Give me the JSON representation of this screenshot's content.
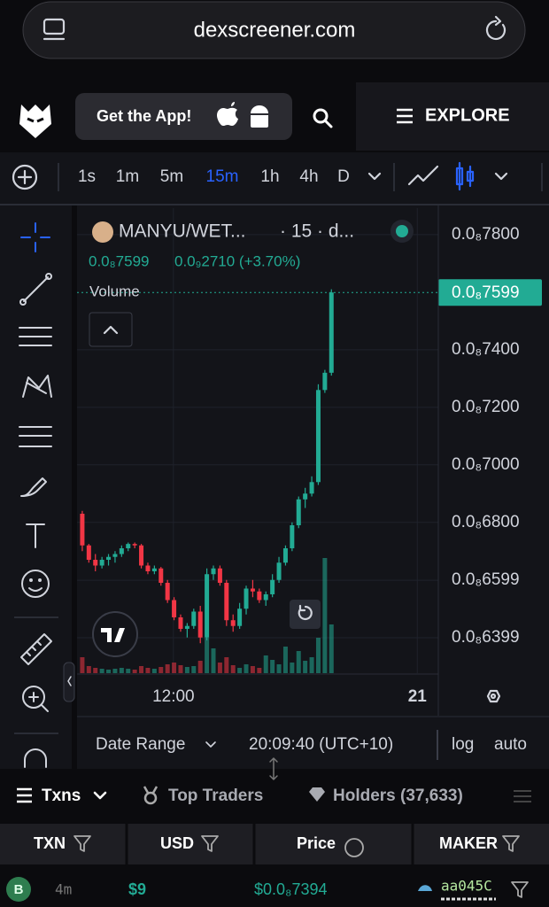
{
  "browser": {
    "url": "dexscreener.com"
  },
  "nav": {
    "app_button": "Get the App!",
    "explore": "EXPLORE"
  },
  "timeframes": [
    "1s",
    "1m",
    "5m",
    "15m",
    "1h",
    "4h",
    "D"
  ],
  "selected_timeframe": 3,
  "chart_data": {
    "type": "candlestick",
    "pair": "MANYU/WET...",
    "interval": "· 15 · d...",
    "last_price": "0.0₈7599",
    "change": "0.0₉2710 (+3.70%)",
    "volume_label": "Volume",
    "up_color": "#22ab94",
    "down_color": "#f23645",
    "open": [
      6.83e-09,
      6.72e-09,
      6.67e-09,
      6.65e-09,
      6.67e-09,
      6.68e-09,
      6.69e-09,
      6.71e-09,
      6.725e-09,
      6.72e-09,
      6.65e-09,
      6.63e-09,
      6.64e-09,
      6.59e-09,
      6.53e-09,
      6.47e-09,
      6.43e-09,
      6.44e-09,
      6.49e-09,
      6.4e-09,
      6.62e-09,
      6.64e-09,
      6.59e-09,
      6.46e-09,
      6.44e-09,
      6.5e-09,
      6.57e-09,
      6.56e-09,
      6.53e-09,
      6.55e-09,
      6.6e-09,
      6.66e-09,
      6.71e-09,
      6.79e-09,
      6.88e-09,
      6.9e-09,
      6.94e-09,
      7.26e-09,
      7.32e-09
    ],
    "high": [
      6.84e-09,
      6.725e-09,
      6.69e-09,
      6.68e-09,
      6.69e-09,
      6.7e-09,
      6.72e-09,
      6.73e-09,
      6.73e-09,
      6.725e-09,
      6.66e-09,
      6.65e-09,
      6.645e-09,
      6.6e-09,
      6.54e-09,
      6.48e-09,
      6.45e-09,
      6.5e-09,
      6.51e-09,
      6.64e-09,
      6.65e-09,
      6.65e-09,
      6.6e-09,
      6.48e-09,
      6.52e-09,
      6.58e-09,
      6.6e-09,
      6.57e-09,
      6.56e-09,
      6.62e-09,
      6.68e-09,
      6.72e-09,
      6.8e-09,
      6.89e-09,
      6.92e-09,
      6.96e-09,
      7.28e-09,
      7.33e-09,
      7.61e-09
    ],
    "low": [
      6.7e-09,
      6.66e-09,
      6.63e-09,
      6.64e-09,
      6.65e-09,
      6.66e-09,
      6.68e-09,
      6.7e-09,
      6.71e-09,
      6.64e-09,
      6.62e-09,
      6.62e-09,
      6.58e-09,
      6.52e-09,
      6.46e-09,
      6.42e-09,
      6.4e-09,
      6.43e-09,
      6.38e-09,
      6.39e-09,
      6.6e-09,
      6.58e-09,
      6.44e-09,
      6.42e-09,
      6.43e-09,
      6.48e-09,
      6.54e-09,
      6.52e-09,
      6.51e-09,
      6.54e-09,
      6.59e-09,
      6.65e-09,
      6.7e-09,
      6.78e-09,
      6.85e-09,
      6.89e-09,
      6.93e-09,
      7.25e-09,
      7.31e-09
    ],
    "close": [
      6.72e-09,
      6.67e-09,
      6.65e-09,
      6.67e-09,
      6.68e-09,
      6.69e-09,
      6.71e-09,
      6.725e-09,
      6.72e-09,
      6.65e-09,
      6.63e-09,
      6.64e-09,
      6.59e-09,
      6.53e-09,
      6.47e-09,
      6.43e-09,
      6.44e-09,
      6.49e-09,
      6.4e-09,
      6.62e-09,
      6.64e-09,
      6.59e-09,
      6.46e-09,
      6.44e-09,
      6.5e-09,
      6.57e-09,
      6.56e-09,
      6.53e-09,
      6.55e-09,
      6.6e-09,
      6.66e-09,
      6.71e-09,
      6.79e-09,
      6.88e-09,
      6.9e-09,
      6.94e-09,
      7.26e-09,
      7.32e-09,
      7.599e-09
    ],
    "volume": [
      18,
      8,
      6,
      5,
      4,
      5,
      6,
      5,
      4,
      8,
      6,
      5,
      7,
      10,
      12,
      9,
      7,
      8,
      14,
      40,
      28,
      12,
      18,
      9,
      6,
      10,
      8,
      6,
      20,
      15,
      10,
      30,
      12,
      25,
      14,
      18,
      40,
      130,
      55
    ],
    "ylim": [
      6.276e-09,
      7.892e-09
    ],
    "yticks": [
      {
        "value": 7.8e-09,
        "label": "0.0₈7800"
      },
      {
        "value": 7.4e-09,
        "label": "0.0₈7400"
      },
      {
        "value": 7.2e-09,
        "label": "0.0₈7200"
      },
      {
        "value": 7e-09,
        "label": "0.0₈7000"
      },
      {
        "value": 6.8e-09,
        "label": "0.0₈6800"
      },
      {
        "value": 6.599e-09,
        "label": "0.0₈6599"
      },
      {
        "value": 6.399e-09,
        "label": "0.0₈6399"
      }
    ],
    "xlim": [
      -0.8,
      53.9
    ],
    "xticks": [
      {
        "value": 13.9,
        "label": "12:00"
      },
      {
        "value": 51.1,
        "label": "21"
      }
    ],
    "current_price": {
      "value": 7.599e-09,
      "label": "0.0₈7599"
    },
    "grid": true
  },
  "chart_footer": {
    "date_range": "Date Range",
    "time": "20:09:40 (UTC+10)",
    "log": "log",
    "auto": "auto"
  },
  "tabs": {
    "txns": "Txns",
    "top_traders": "Top Traders",
    "holders": "Holders (37,633)"
  },
  "table": {
    "headers": [
      "TXN",
      "USD",
      "Price",
      "MAKER"
    ],
    "rows": [
      [
        "B",
        "4m",
        "$9",
        "$0.0₈7394",
        "aa045C"
      ]
    ]
  }
}
